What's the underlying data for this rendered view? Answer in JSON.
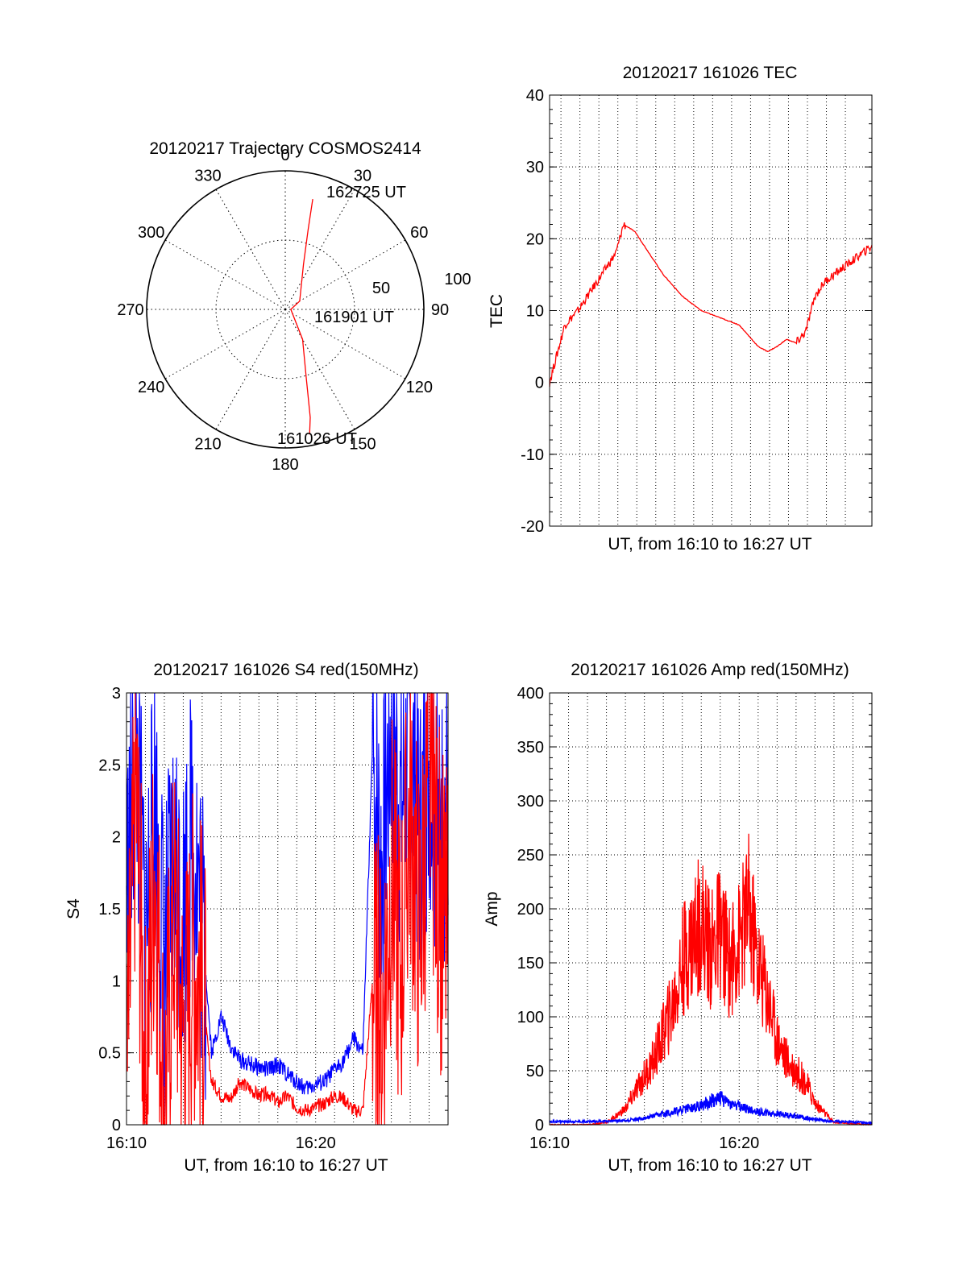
{
  "chart_data": [
    {
      "type": "polar",
      "title": "20120217 Trajectory COSMOS2414",
      "angle_labels": [
        "0",
        "30",
        "60",
        "90",
        "120",
        "150",
        "180",
        "210",
        "240",
        "270",
        "300",
        "330"
      ],
      "radius_labels": [
        "50",
        "100"
      ],
      "rlim": [
        0,
        100
      ],
      "grid": true,
      "series": [
        {
          "color": "#ff0000",
          "points": [
            {
              "az": 14,
              "r": 82
            },
            {
              "az": 16,
              "r": 60
            },
            {
              "az": 22,
              "r": 35
            },
            {
              "az": 60,
              "r": 12
            },
            {
              "az": 90,
              "r": 4
            },
            {
              "az": 150,
              "r": 25
            },
            {
              "az": 163,
              "r": 52
            },
            {
              "az": 167,
              "r": 80
            },
            {
              "az": 169,
              "r": 92
            }
          ]
        }
      ],
      "annotations": [
        "162725 UT",
        "161901 UT",
        "161026 UT"
      ]
    },
    {
      "type": "line",
      "title": "20120217 161026 TEC",
      "xlabel": "UT, from 16:10 to 16:27 UT",
      "ylabel": "TEC",
      "xlim": [
        0,
        17
      ],
      "ylim": [
        -20,
        40
      ],
      "yticks": [
        "-20",
        "-10",
        "0",
        "10",
        "20",
        "30",
        "40"
      ],
      "grid": true,
      "series": [
        {
          "color": "#ff0000",
          "x": [
            0,
            0.3,
            0.8,
            1.5,
            2,
            2.5,
            3,
            3.5,
            3.9,
            4.5,
            5,
            6,
            7,
            8,
            9,
            10,
            10.5,
            11,
            11.5,
            12,
            12.5,
            13,
            13.5,
            14,
            14.5,
            15,
            15.5,
            16,
            16.5,
            17
          ],
          "y": [
            0,
            3,
            8,
            10,
            12,
            14,
            16,
            18,
            22,
            21,
            19,
            15,
            12,
            10,
            9,
            8,
            6.5,
            5,
            4.3,
            5,
            6,
            5.5,
            7,
            12,
            14,
            15,
            16,
            17,
            18,
            19
          ]
        }
      ]
    },
    {
      "type": "line",
      "title": "20120217 161026 S4 red(150MHz)",
      "xlabel": "UT, from 16:10 to 16:27 UT",
      "ylabel": "S4",
      "xlim": [
        0,
        17
      ],
      "ylim": [
        0,
        3
      ],
      "xticks": [
        {
          "x": 0,
          "label": "16:10"
        },
        {
          "x": 10,
          "label": "16:20"
        }
      ],
      "yticks": [
        "0",
        "0.5",
        "1",
        "1.5",
        "2",
        "2.5",
        "3"
      ],
      "grid": true,
      "series": [
        {
          "color": "#0000ff",
          "x": [
            0,
            0.5,
            1,
            1.5,
            2,
            2.5,
            3,
            3.5,
            4,
            4.5,
            5,
            5.5,
            6,
            6.5,
            7,
            7.5,
            8,
            8.5,
            9,
            9.5,
            10,
            10.5,
            11,
            11.5,
            12,
            12.5,
            13,
            13.5,
            14,
            14.5,
            15,
            15.5,
            16,
            16.5,
            17
          ],
          "y": [
            1.6,
            2.6,
            1.3,
            2.2,
            1.1,
            1.8,
            1.5,
            2.1,
            1.4,
            0.5,
            0.75,
            0.55,
            0.45,
            0.42,
            0.4,
            0.38,
            0.42,
            0.35,
            0.3,
            0.25,
            0.28,
            0.3,
            0.38,
            0.45,
            0.6,
            0.5,
            2.6,
            1.8,
            2.9,
            2.2,
            2.7,
            2.0,
            2.6,
            1.9,
            2.4
          ]
        },
        {
          "color": "#ff0000",
          "x": [
            0,
            0.5,
            1,
            1.5,
            2,
            2.5,
            3,
            3.5,
            4,
            4.5,
            5,
            5.5,
            6,
            6.5,
            7,
            7.5,
            8,
            8.5,
            9,
            9.5,
            10,
            10.5,
            11,
            11.5,
            12,
            12.5,
            13,
            13.5,
            14,
            14.5,
            15,
            15.5,
            16,
            16.5,
            17
          ],
          "y": [
            0.2,
            2.4,
            0.3,
            1.9,
            0.1,
            1.5,
            0.6,
            1.2,
            0.9,
            0.3,
            0.2,
            0.18,
            0.3,
            0.25,
            0.2,
            0.22,
            0.15,
            0.2,
            0.12,
            0.1,
            0.12,
            0.15,
            0.2,
            0.18,
            0.1,
            0.1,
            1.0,
            0.7,
            1.8,
            1.1,
            2.2,
            1.3,
            2.5,
            1.6,
            1.3
          ]
        }
      ]
    },
    {
      "type": "line",
      "title": "20120217 161026 Amp red(150MHz)",
      "xlabel": "UT, from 16:10 to 16:27 UT",
      "ylabel": "Amp",
      "xlim": [
        0,
        17
      ],
      "ylim": [
        0,
        400
      ],
      "xticks": [
        {
          "x": 0,
          "label": "16:10"
        },
        {
          "x": 10,
          "label": "16:20"
        }
      ],
      "yticks": [
        "0",
        "50",
        "100",
        "150",
        "200",
        "250",
        "300",
        "350",
        "400"
      ],
      "grid": true,
      "series": [
        {
          "color": "#ff0000",
          "x": [
            0,
            2,
            3,
            3.5,
            4,
            4.5,
            5,
            5.5,
            6,
            6.5,
            7,
            7.5,
            8,
            8.5,
            9,
            9.5,
            10,
            10.5,
            11,
            11.5,
            12,
            12.5,
            13,
            13.5,
            14,
            15,
            17
          ],
          "y": [
            0,
            0,
            2,
            8,
            15,
            30,
            45,
            60,
            85,
            110,
            150,
            170,
            190,
            160,
            180,
            150,
            170,
            200,
            150,
            120,
            80,
            60,
            50,
            40,
            20,
            2,
            0
          ]
        },
        {
          "color": "#0000ff",
          "x": [
            0,
            2,
            4,
            5,
            6,
            7,
            8,
            8.5,
            9,
            9.5,
            10,
            10.5,
            11,
            12,
            13,
            14,
            15,
            17
          ],
          "y": [
            3,
            3,
            4,
            6,
            10,
            14,
            18,
            22,
            25,
            20,
            17,
            14,
            12,
            10,
            8,
            5,
            3,
            2
          ]
        }
      ]
    }
  ]
}
